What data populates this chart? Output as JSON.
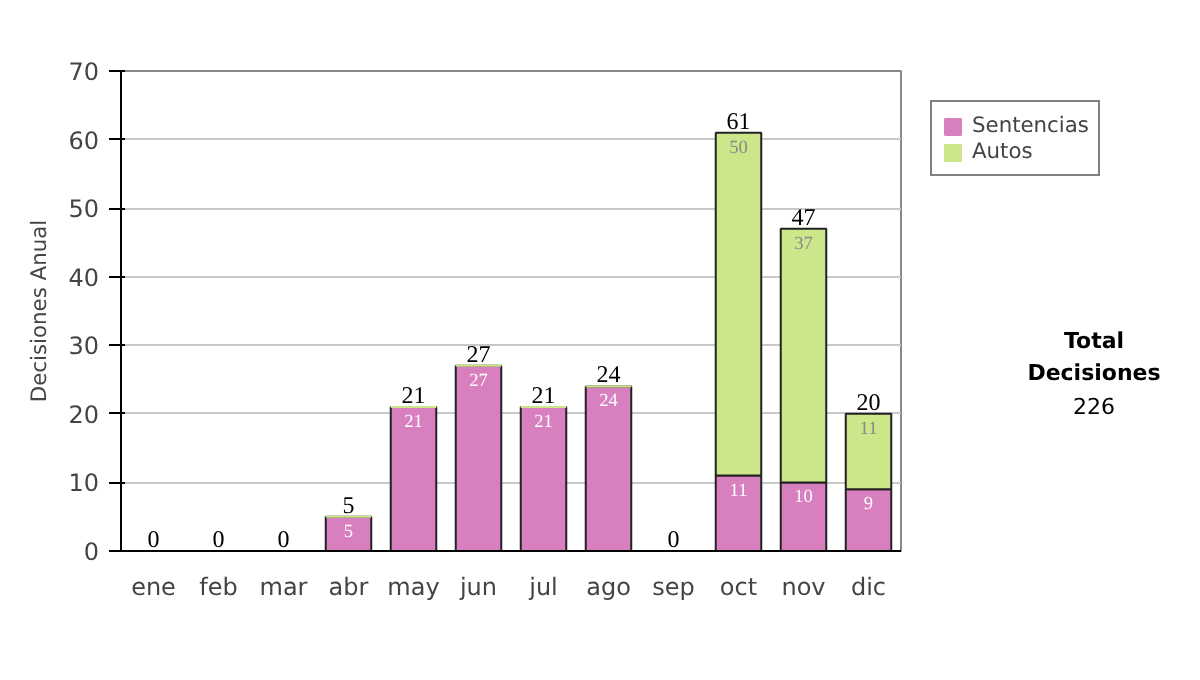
{
  "chart_data": {
    "type": "bar",
    "stacked": true,
    "ylabel": "Decisiones Anual",
    "categories": [
      "ene",
      "feb",
      "mar",
      "abr",
      "may",
      "jun",
      "jul",
      "ago",
      "sep",
      "oct",
      "nov",
      "dic"
    ],
    "series": [
      {
        "name": "Sentencias",
        "color": "#d87fc0",
        "values": [
          0,
          0,
          0,
          5,
          21,
          27,
          21,
          24,
          0,
          11,
          10,
          9
        ],
        "value_labels": [
          null,
          null,
          null,
          "5",
          "21",
          "27",
          "21",
          "24",
          null,
          "11",
          "10",
          "9"
        ]
      },
      {
        "name": "Autos",
        "color": "#cce68a",
        "values": [
          0,
          0,
          0,
          0,
          0,
          0,
          0,
          0,
          0,
          50,
          37,
          11
        ],
        "value_labels": [
          null,
          null,
          null,
          null,
          null,
          null,
          null,
          null,
          null,
          "50",
          "37",
          "11"
        ]
      }
    ],
    "totals": [
      "0",
      "0",
      "0",
      "5",
      "21",
      "27",
      "21",
      "24",
      "0",
      "61",
      "47",
      "20"
    ],
    "ylim": [
      0,
      70
    ],
    "yticks": [
      0,
      10,
      20,
      30,
      40,
      50,
      60,
      70
    ],
    "grid": "y",
    "legend": "right",
    "annotations": [
      "Total Decisiones",
      "226"
    ]
  }
}
